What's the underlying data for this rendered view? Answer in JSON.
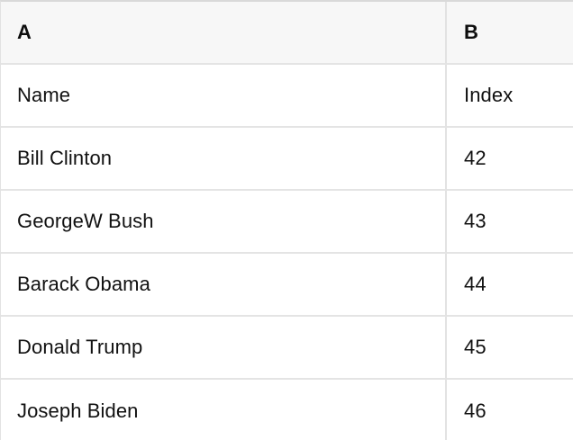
{
  "table": {
    "header": {
      "col_a": "A",
      "col_b": "B"
    },
    "rows": [
      {
        "a": "Name",
        "b": "Index"
      },
      {
        "a": "Bill Clinton",
        "b": "42"
      },
      {
        "a": "GeorgeW Bush",
        "b": "43"
      },
      {
        "a": "Barack Obama",
        "b": "44"
      },
      {
        "a": "Donald Trump",
        "b": "45"
      },
      {
        "a": "Joseph Biden",
        "b": "46"
      }
    ],
    "colors": {
      "header_bg": "#f7f7f7",
      "row_bg": "#ffffff",
      "grid_border": "#e2e2e2",
      "top_border": "#d9d9d9",
      "text": "#111111"
    }
  }
}
